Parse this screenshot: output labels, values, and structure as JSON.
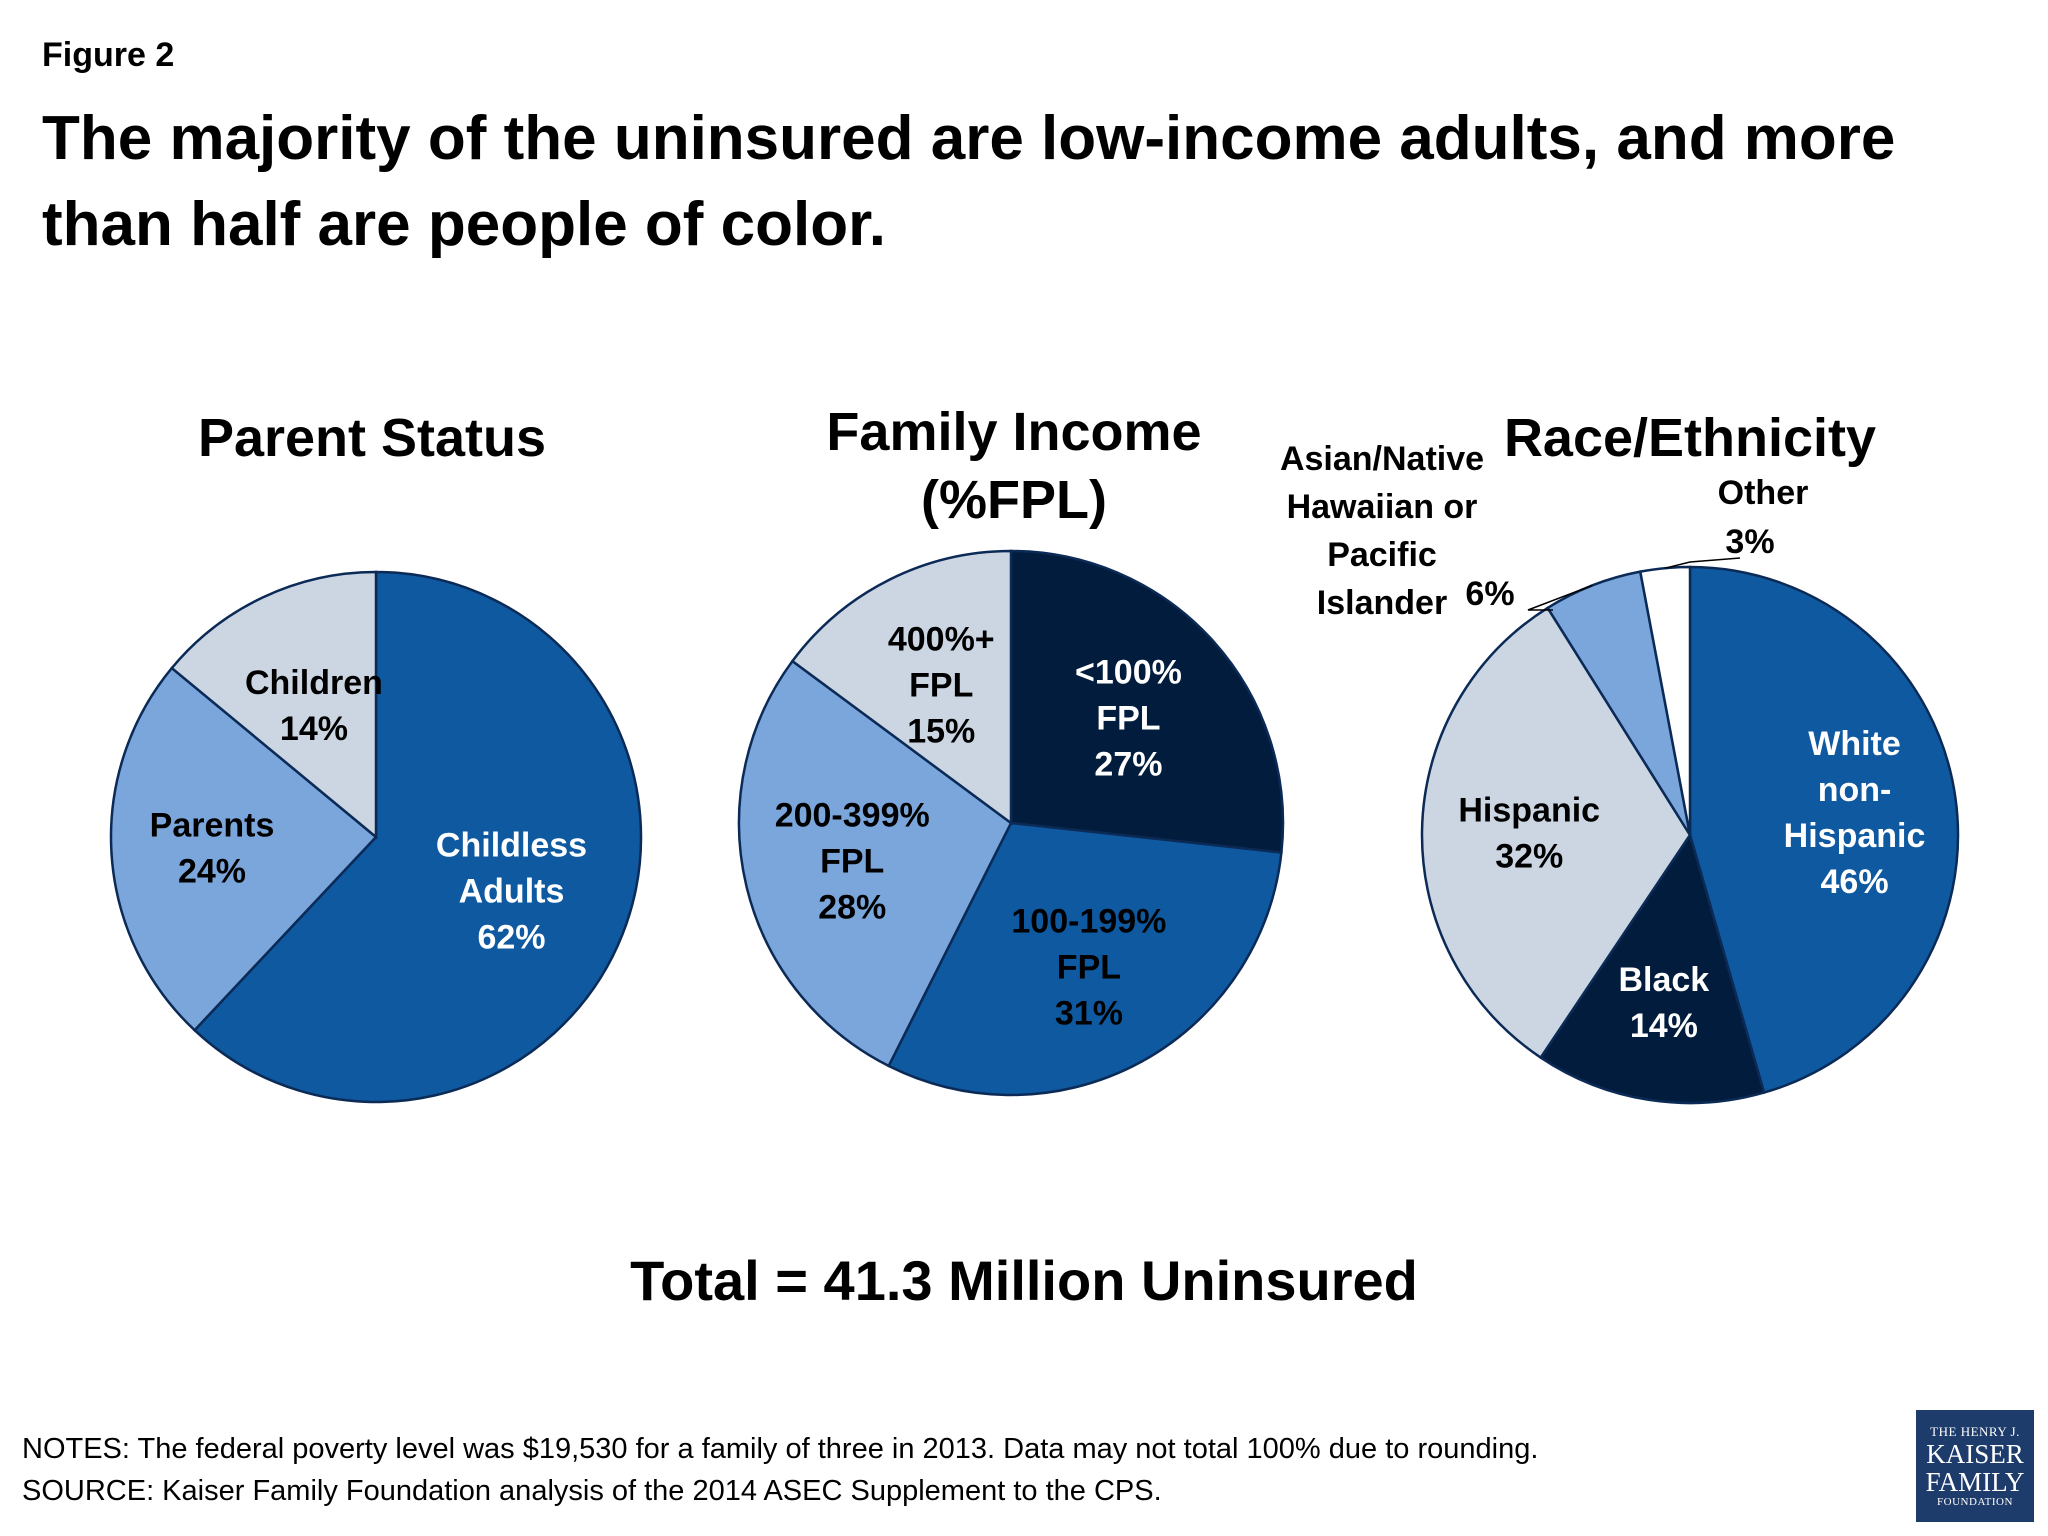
{
  "figure_label": "Figure 2",
  "headline": "The majority of the uninsured are low-income adults, and more than half are people of color.",
  "total": "Total = 41.3 Million Uninsured",
  "notes": "NOTES: The federal poverty level was $19,530 for a family of three in 2013. Data may not total 100% due to rounding.",
  "source": "SOURCE: Kaiser Family Foundation analysis of the 2014 ASEC Supplement to the CPS.",
  "logo": {
    "line1": "THE HENRY J.",
    "line2": "KAISER",
    "line3": "FAMILY",
    "line4": "FOUNDATION"
  },
  "colors": {
    "light_gray": "#ccd6e3",
    "light_blue": "#7ba6dc",
    "mid_blue": "#0e59a0",
    "navy": "#011c3d",
    "white": "#ffffff",
    "outline": "#0b2a56"
  },
  "chart_data": [
    {
      "type": "pie",
      "title": "Parent Status",
      "title_lines": [
        "Parent Status"
      ],
      "start_angle_deg": 0,
      "slices": [
        {
          "label": "Childless Adults",
          "label_lines": [
            "Childless",
            "Adults"
          ],
          "value": 62,
          "display": "62%",
          "color": "#0e59a0",
          "text_color": "#ffffff"
        },
        {
          "label": "Parents",
          "label_lines": [
            "Parents"
          ],
          "value": 24,
          "display": "24%",
          "color": "#7ba6dc",
          "text_color": "#000000"
        },
        {
          "label": "Children",
          "label_lines": [
            "Children"
          ],
          "value": 14,
          "display": "14%",
          "color": "#ccd6e3",
          "text_color": "#000000"
        }
      ]
    },
    {
      "type": "pie",
      "title": "Family Income (%FPL)",
      "title_lines": [
        "Family Income",
        "(%FPL)"
      ],
      "start_angle_deg": 0,
      "slices": [
        {
          "label": "<100% FPL",
          "label_lines": [
            "<100%",
            "FPL"
          ],
          "value": 27,
          "display": "27%",
          "color": "#011c3d",
          "text_color": "#ffffff"
        },
        {
          "label": "100-199% FPL",
          "label_lines": [
            "100-199%",
            "FPL"
          ],
          "value": 31,
          "display": "31%",
          "color": "#0e59a0",
          "text_color": "#000000"
        },
        {
          "label": "200-399% FPL",
          "label_lines": [
            "200-399%",
            "FPL"
          ],
          "value": 28,
          "display": "28%",
          "color": "#7ba6dc",
          "text_color": "#000000"
        },
        {
          "label": "400%+ FPL",
          "label_lines": [
            "400%+",
            "FPL"
          ],
          "value": 15,
          "display": "15%",
          "color": "#ccd6e3",
          "text_color": "#000000"
        }
      ]
    },
    {
      "type": "pie",
      "title": "Race/Ethnicity",
      "title_lines": [
        "Race/Ethnicity"
      ],
      "start_angle_deg": 0,
      "slices": [
        {
          "label": "White non-Hispanic",
          "label_lines": [
            "White",
            "non-",
            "Hispanic"
          ],
          "value": 46,
          "display": "46%",
          "color": "#0e59a0",
          "text_color": "#ffffff"
        },
        {
          "label": "Black",
          "label_lines": [
            "Black"
          ],
          "value": 14,
          "display": "14%",
          "color": "#011c3d",
          "text_color": "#ffffff"
        },
        {
          "label": "Hispanic",
          "label_lines": [
            "Hispanic"
          ],
          "value": 32,
          "display": "32%",
          "color": "#ccd6e3",
          "text_color": "#000000"
        },
        {
          "label": "Asian/Native Hawaiian or Pacific Islander",
          "label_lines": [
            "Asian/Native",
            "Hawaiian or",
            "Pacific",
            "Islander"
          ],
          "value": 6,
          "display": "6%",
          "color": "#7ba6dc",
          "text_color": "#000000",
          "outside": true
        },
        {
          "label": "Other",
          "label_lines": [
            "Other"
          ],
          "value": 3,
          "display": "3%",
          "color": "#ffffff",
          "text_color": "#000000",
          "outside": true
        }
      ]
    }
  ]
}
